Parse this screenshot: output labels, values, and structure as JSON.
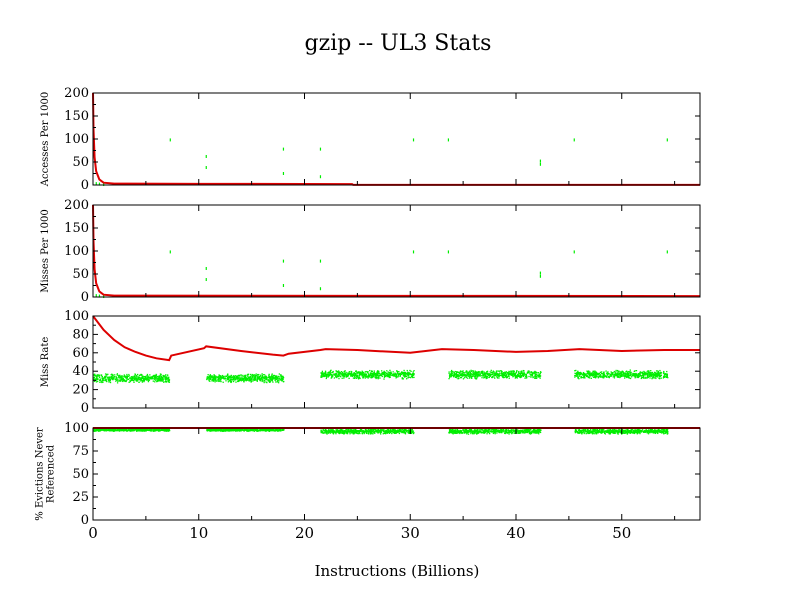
{
  "chart_data": {
    "type": "scatter",
    "title": "gzip -- UL3  Stats",
    "xlabel": "Instructions (Billions)",
    "xlim": [
      0,
      57.4
    ],
    "xticks": [
      "0",
      "10",
      "20",
      "30",
      "40",
      "50"
    ],
    "colors": {
      "cumulative": "#dd0000",
      "interval": "#00ee00"
    },
    "panels": [
      {
        "ylabel": [
          "Accesses Per 1000"
        ],
        "ylim": [
          0,
          200
        ],
        "yticks": [
          "0",
          "50",
          "100",
          "150",
          "200"
        ],
        "red_line": [
          [
            0,
            200
          ],
          [
            0.05,
            120
          ],
          [
            0.15,
            60
          ],
          [
            0.3,
            30
          ],
          [
            0.6,
            12
          ],
          [
            1,
            5
          ],
          [
            2,
            3
          ],
          [
            10,
            2.5
          ],
          [
            24.5,
            2
          ],
          [
            24.6,
            0.3
          ],
          [
            57.4,
            0.3
          ]
        ],
        "green_points": [
          [
            0.3,
            3
          ],
          [
            0.6,
            2
          ],
          [
            1,
            1
          ],
          [
            7.3,
            98
          ],
          [
            10.7,
            62
          ],
          [
            10.7,
            38
          ],
          [
            18,
            78
          ],
          [
            18,
            25
          ],
          [
            21.5,
            78
          ],
          [
            21.5,
            18
          ],
          [
            30.3,
            98
          ],
          [
            33.6,
            98
          ],
          [
            42.3,
            52
          ],
          [
            42.3,
            45
          ],
          [
            45.5,
            98
          ],
          [
            54.3,
            98
          ]
        ]
      },
      {
        "ylabel": [
          "Misses Per 1000"
        ],
        "ylim": [
          0,
          200
        ],
        "yticks": [
          "0",
          "50",
          "100",
          "150",
          "200"
        ],
        "red_line": [
          [
            0,
            200
          ],
          [
            0.05,
            120
          ],
          [
            0.15,
            60
          ],
          [
            0.3,
            30
          ],
          [
            0.6,
            12
          ],
          [
            1,
            5
          ],
          [
            2,
            3
          ],
          [
            57.4,
            2
          ]
        ],
        "green_points": [
          [
            0.3,
            3
          ],
          [
            0.6,
            2
          ],
          [
            1,
            1
          ],
          [
            7.3,
            98
          ],
          [
            10.7,
            62
          ],
          [
            10.7,
            38
          ],
          [
            18,
            78
          ],
          [
            18,
            25
          ],
          [
            21.5,
            78
          ],
          [
            21.5,
            18
          ],
          [
            30.3,
            98
          ],
          [
            33.6,
            98
          ],
          [
            42.3,
            52
          ],
          [
            42.3,
            45
          ],
          [
            45.5,
            98
          ],
          [
            54.3,
            98
          ]
        ]
      },
      {
        "ylabel": [
          "Miss Rate"
        ],
        "ylim": [
          0,
          100
        ],
        "yticks": [
          "0",
          "20",
          "40",
          "60",
          "80",
          "100"
        ],
        "red_line": [
          [
            0,
            100
          ],
          [
            1,
            85
          ],
          [
            2,
            74
          ],
          [
            3,
            66
          ],
          [
            4,
            61
          ],
          [
            5,
            57
          ],
          [
            6,
            54
          ],
          [
            7.2,
            52
          ],
          [
            7.4,
            57
          ],
          [
            10.5,
            65
          ],
          [
            10.7,
            67
          ],
          [
            14,
            62
          ],
          [
            17,
            58
          ],
          [
            18,
            57
          ],
          [
            18.5,
            59
          ],
          [
            21.5,
            63
          ],
          [
            22,
            64
          ],
          [
            25,
            63
          ],
          [
            30,
            60
          ],
          [
            33,
            64
          ],
          [
            36,
            63
          ],
          [
            40,
            61
          ],
          [
            43,
            62
          ],
          [
            46,
            64
          ],
          [
            50,
            62
          ],
          [
            54,
            63
          ],
          [
            57.4,
            63
          ]
        ],
        "green_bands": [
          [
            0,
            7.2,
            33,
            5
          ],
          [
            10.7,
            18,
            33,
            5
          ],
          [
            21.5,
            30.3,
            37,
            5
          ],
          [
            33.6,
            42.3,
            37,
            5
          ],
          [
            45.5,
            54.3,
            37,
            5
          ]
        ]
      },
      {
        "ylabel": [
          "% Evictions Never",
          "Referenced"
        ],
        "ylim": [
          0,
          100
        ],
        "yticks": [
          "0",
          "25",
          "50",
          "75",
          "100"
        ],
        "red_line": [
          [
            0,
            100
          ],
          [
            57.4,
            100
          ]
        ],
        "green_bands": [
          [
            0,
            7.2,
            98.5,
            1.5
          ],
          [
            10.7,
            18,
            98.5,
            1.5
          ],
          [
            21.5,
            30.3,
            97,
            3
          ],
          [
            33.6,
            42.3,
            97,
            3
          ],
          [
            45.5,
            54.3,
            97,
            3
          ]
        ]
      }
    ]
  }
}
